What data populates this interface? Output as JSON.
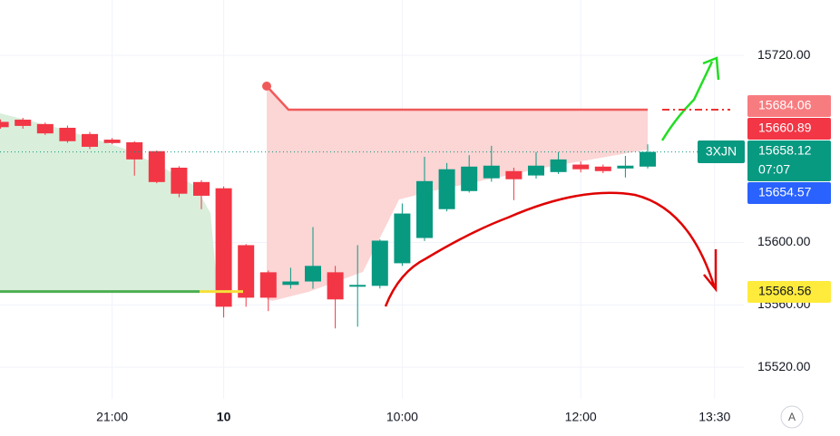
{
  "chart_data": {
    "type": "candlestick",
    "categories": [
      null,
      null,
      null,
      null,
      null,
      "21:00",
      null,
      null,
      null,
      null,
      "10",
      null,
      null,
      null,
      null,
      null,
      null,
      null,
      "10:00",
      null,
      null,
      null,
      null,
      null,
      null,
      null,
      "12:00",
      null,
      null,
      null,
      null,
      null,
      "13:30",
      null
    ],
    "series": [
      {
        "name": "3XJN",
        "up_color": "#089981",
        "down_color": "#f23645",
        "open": [
          15677.4,
          15678.8,
          15676,
          15673.6,
          15669.6,
          15666,
          15664.3,
          15658.6,
          15648,
          15638.8,
          15634.8,
          15598.3,
          15580.9,
          15572.8,
          15575,
          15580.9,
          15572.2,
          15572.2,
          15586.7,
          15602.9,
          15621.4,
          15633,
          15641.2,
          15645.8,
          15643,
          15645.2,
          15650,
          15648.7,
          15647.5,
          15648.7,
          null,
          null,
          null,
          null
        ],
        "high": [
          15679,
          15680,
          15677,
          15675,
          15671,
          15667,
          15665,
          15659,
          15649,
          15640,
          15636,
          15599,
          15582,
          15583.8,
          15609.9,
          15585,
          15598.3,
          15602,
          15625,
          15655,
          15651,
          15656,
          15662,
          15648,
          15658,
          15658,
          15652,
          15650,
          15655.6,
          15663,
          null,
          null,
          null,
          null
        ],
        "low": [
          15673,
          15673,
          15669,
          15664,
          15660,
          15663,
          15642.9,
          15638,
          15629,
          15621.4,
          15551.9,
          15558.8,
          15556,
          15570.4,
          15570.4,
          15544.9,
          15546,
          15570.5,
          15585,
          15601,
          15620,
          15632,
          15639,
          15627.2,
          15641,
          15644,
          15645,
          15644.5,
          15641.7,
          15647.5,
          null,
          null,
          null,
          null
        ],
        "close": [
          15674,
          15674.8,
          15670,
          15665,
          15661.4,
          15663.8,
          15653.3,
          15638.8,
          15631.3,
          15630,
          15558.8,
          15564.6,
          15564.6,
          15575,
          15585,
          15563.5,
          15572.8,
          15601.2,
          15618.6,
          15639.4,
          15647,
          15648.7,
          15649.3,
          15640.6,
          15649.3,
          15653.3,
          15647,
          15645.8,
          15649.3,
          15658.12,
          null,
          null,
          null,
          null
        ]
      }
    ],
    "ylim": [
      15500,
      15755
    ],
    "yticks": [
      {
        "value": 15720,
        "label": "15720.00"
      },
      {
        "value": 15600,
        "label": "15600.00"
      },
      {
        "value": 15560,
        "label": "15560.00"
      },
      {
        "value": 15520,
        "label": "15520.00"
      }
    ],
    "grid": true,
    "price_tags": [
      15684.06,
      15660.89,
      15658.12,
      15654.57,
      15568.56
    ],
    "countdown": "07:07",
    "scale_button": "A"
  }
}
